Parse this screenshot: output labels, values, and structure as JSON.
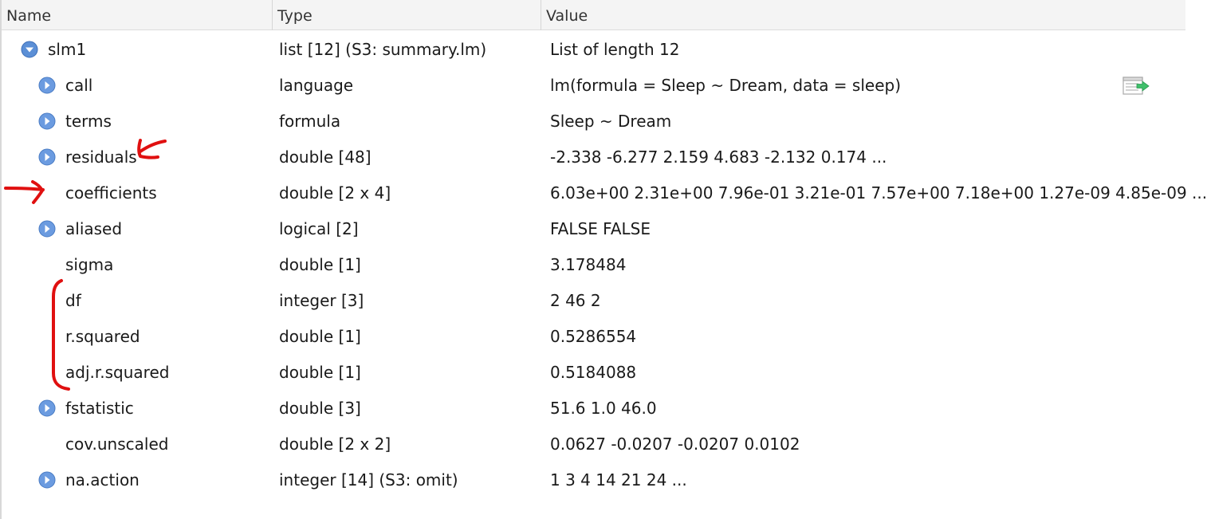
{
  "columns": {
    "name": "Name",
    "type": "Type",
    "value": "Value"
  },
  "rows": [
    {
      "name": "slm1",
      "type": "list [12] (S3: summary.lm)",
      "value": "List of length 12"
    },
    {
      "name": "call",
      "type": "language",
      "value": "lm(formula = Sleep ~ Dream, data = sleep)"
    },
    {
      "name": "terms",
      "type": "formula",
      "value": "Sleep ~ Dream"
    },
    {
      "name": "residuals",
      "type": "double [48]",
      "value": "-2.338 -6.277 2.159 4.683 -2.132 0.174 ..."
    },
    {
      "name": "coefficients",
      "type": "double [2 x 4]",
      "value": "6.03e+00 2.31e+00 7.96e-01 3.21e-01 7.57e+00 7.18e+00 1.27e-09 4.85e-09 ..."
    },
    {
      "name": "aliased",
      "type": "logical [2]",
      "value": "FALSE FALSE"
    },
    {
      "name": "sigma",
      "type": "double [1]",
      "value": "3.178484"
    },
    {
      "name": "df",
      "type": "integer [3]",
      "value": "2 46 2"
    },
    {
      "name": "r.squared",
      "type": "double [1]",
      "value": "0.5286554"
    },
    {
      "name": "adj.r.squared",
      "type": "double [1]",
      "value": "0.5184088"
    },
    {
      "name": "fstatistic",
      "type": "double [3]",
      "value": "51.6 1.0 46.0"
    },
    {
      "name": "cov.unscaled",
      "type": "double [2 x 2]",
      "value": "0.0627 -0.0207 -0.0207 0.0102"
    },
    {
      "name": "na.action",
      "type": "integer [14] (S3: omit)",
      "value": "1 3 4 14 21 24 ..."
    }
  ],
  "colors": {
    "toggle": "#5b8fd6",
    "annotation": "#e01010"
  },
  "icons": {
    "expanded": "chevron-down-icon",
    "collapsed": "chevron-right-icon",
    "row_action": "view-code-icon"
  }
}
